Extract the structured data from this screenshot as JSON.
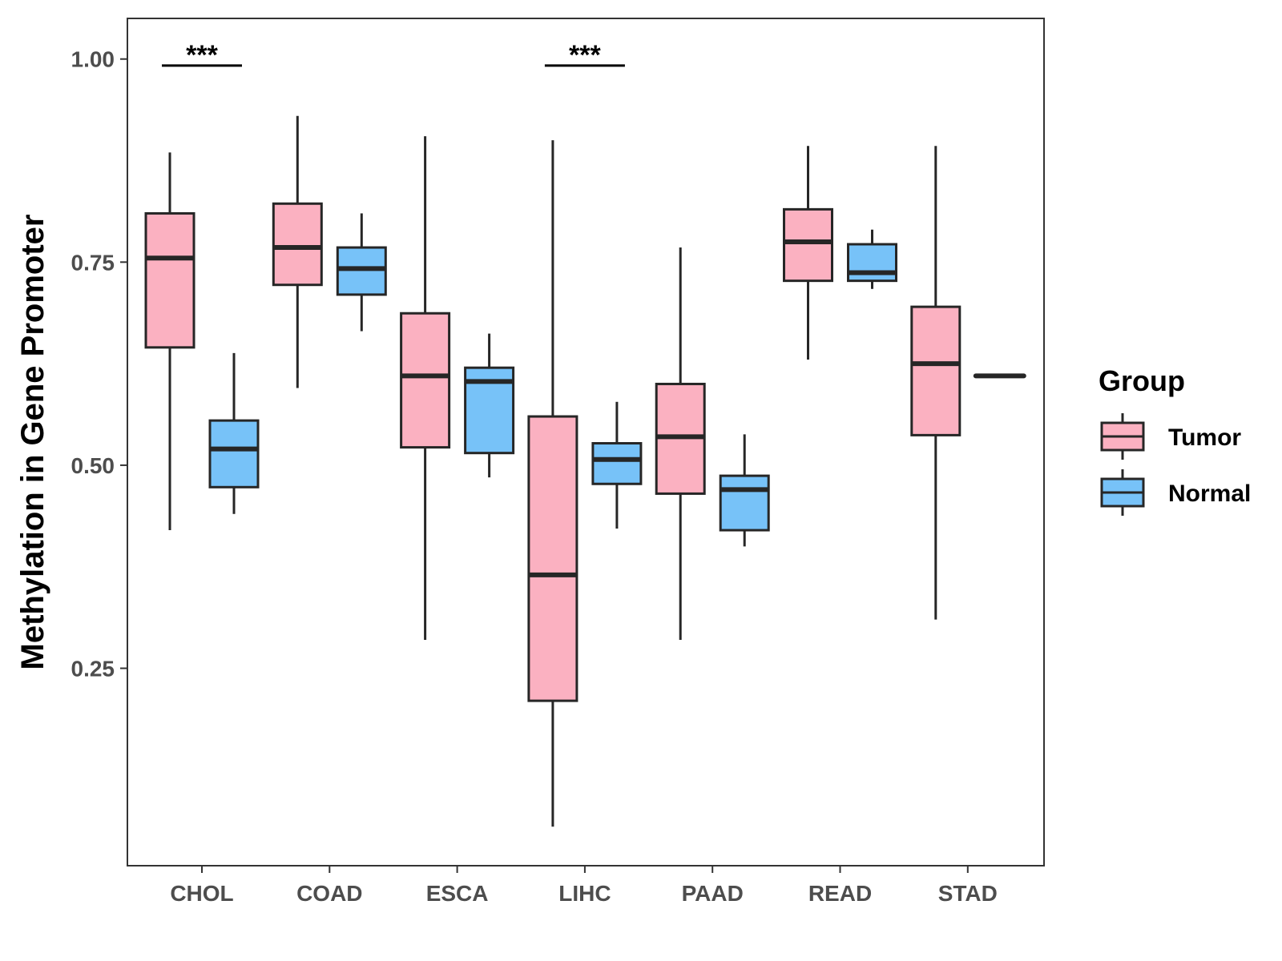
{
  "chart_data": {
    "type": "boxplot",
    "title": "",
    "xlabel": "",
    "ylabel": "Methylation in Gene Promoter",
    "ylim": [
      0.007,
      1.05
    ],
    "yticks": [
      {
        "value": 0.25,
        "label": "0.25"
      },
      {
        "value": 0.5,
        "label": "0.50"
      },
      {
        "value": 0.75,
        "label": "0.75"
      },
      {
        "value": 1.0,
        "label": "1.00"
      }
    ],
    "categories": [
      "CHOL",
      "COAD",
      "ESCA",
      "LIHC",
      "PAAD",
      "READ",
      "STAD"
    ],
    "legend": {
      "title": "Group",
      "position": "right",
      "entries": [
        {
          "name": "Tumor",
          "color": "#FBB1C1"
        },
        {
          "name": "Normal",
          "color": "#77C2F8"
        }
      ]
    },
    "series": [
      {
        "name": "Tumor",
        "color": "#FBB1C1",
        "boxes": [
          {
            "category": "CHOL",
            "min": 0.42,
            "q1": 0.645,
            "median": 0.755,
            "q3": 0.81,
            "max": 0.885
          },
          {
            "category": "COAD",
            "min": 0.595,
            "q1": 0.722,
            "median": 0.768,
            "q3": 0.822,
            "max": 0.93
          },
          {
            "category": "ESCA",
            "min": 0.285,
            "q1": 0.522,
            "median": 0.61,
            "q3": 0.687,
            "max": 0.905
          },
          {
            "category": "LIHC",
            "min": 0.055,
            "q1": 0.21,
            "median": 0.365,
            "q3": 0.56,
            "max": 0.9
          },
          {
            "category": "PAAD",
            "min": 0.285,
            "q1": 0.465,
            "median": 0.535,
            "q3": 0.6,
            "max": 0.768
          },
          {
            "category": "READ",
            "min": 0.63,
            "q1": 0.727,
            "median": 0.775,
            "q3": 0.815,
            "max": 0.893
          },
          {
            "category": "STAD",
            "min": 0.31,
            "q1": 0.537,
            "median": 0.625,
            "q3": 0.695,
            "max": 0.893
          }
        ]
      },
      {
        "name": "Normal",
        "color": "#77C2F8",
        "boxes": [
          {
            "category": "CHOL",
            "min": 0.44,
            "q1": 0.473,
            "median": 0.52,
            "q3": 0.555,
            "max": 0.638
          },
          {
            "category": "COAD",
            "min": 0.665,
            "q1": 0.71,
            "median": 0.742,
            "q3": 0.768,
            "max": 0.81
          },
          {
            "category": "ESCA",
            "min": 0.485,
            "q1": 0.515,
            "median": 0.603,
            "q3": 0.62,
            "max": 0.662
          },
          {
            "category": "LIHC",
            "min": 0.422,
            "q1": 0.477,
            "median": 0.507,
            "q3": 0.527,
            "max": 0.578
          },
          {
            "category": "PAAD",
            "min": 0.4,
            "q1": 0.42,
            "median": 0.47,
            "q3": 0.487,
            "max": 0.538
          },
          {
            "category": "READ",
            "min": 0.717,
            "q1": 0.727,
            "median": 0.737,
            "q3": 0.772,
            "max": 0.79
          },
          {
            "category": "STAD",
            "min": 0.61,
            "q1": 0.61,
            "median": 0.61,
            "q3": 0.61,
            "max": 0.61
          }
        ]
      }
    ],
    "annotations": [
      {
        "category": "CHOL",
        "text": "***",
        "y": 0.99
      },
      {
        "category": "LIHC",
        "text": "***",
        "y": 0.99
      }
    ]
  }
}
